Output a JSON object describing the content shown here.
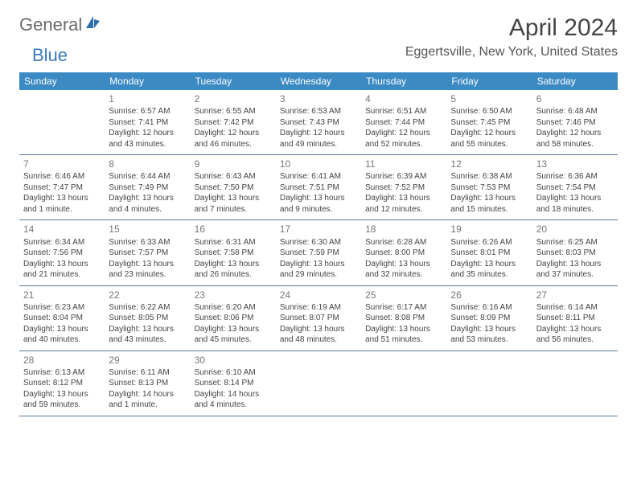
{
  "brand": {
    "part1": "General",
    "part2": "Blue"
  },
  "title": "April 2024",
  "location": "Eggertsville, New York, United States",
  "colors": {
    "header_bg": "#3b8ac4",
    "header_text": "#ffffff",
    "row_border": "#5b7a99",
    "daynum": "#777777",
    "body_text": "#444444",
    "logo_gray": "#6b6b6b",
    "logo_blue": "#3b7bbf"
  },
  "day_headers": [
    "Sunday",
    "Monday",
    "Tuesday",
    "Wednesday",
    "Thursday",
    "Friday",
    "Saturday"
  ],
  "weeks": [
    [
      {
        "n": "",
        "sr": "",
        "ss": "",
        "dl": ""
      },
      {
        "n": "1",
        "sr": "Sunrise: 6:57 AM",
        "ss": "Sunset: 7:41 PM",
        "dl": "Daylight: 12 hours and 43 minutes."
      },
      {
        "n": "2",
        "sr": "Sunrise: 6:55 AM",
        "ss": "Sunset: 7:42 PM",
        "dl": "Daylight: 12 hours and 46 minutes."
      },
      {
        "n": "3",
        "sr": "Sunrise: 6:53 AM",
        "ss": "Sunset: 7:43 PM",
        "dl": "Daylight: 12 hours and 49 minutes."
      },
      {
        "n": "4",
        "sr": "Sunrise: 6:51 AM",
        "ss": "Sunset: 7:44 PM",
        "dl": "Daylight: 12 hours and 52 minutes."
      },
      {
        "n": "5",
        "sr": "Sunrise: 6:50 AM",
        "ss": "Sunset: 7:45 PM",
        "dl": "Daylight: 12 hours and 55 minutes."
      },
      {
        "n": "6",
        "sr": "Sunrise: 6:48 AM",
        "ss": "Sunset: 7:46 PM",
        "dl": "Daylight: 12 hours and 58 minutes."
      }
    ],
    [
      {
        "n": "7",
        "sr": "Sunrise: 6:46 AM",
        "ss": "Sunset: 7:47 PM",
        "dl": "Daylight: 13 hours and 1 minute."
      },
      {
        "n": "8",
        "sr": "Sunrise: 6:44 AM",
        "ss": "Sunset: 7:49 PM",
        "dl": "Daylight: 13 hours and 4 minutes."
      },
      {
        "n": "9",
        "sr": "Sunrise: 6:43 AM",
        "ss": "Sunset: 7:50 PM",
        "dl": "Daylight: 13 hours and 7 minutes."
      },
      {
        "n": "10",
        "sr": "Sunrise: 6:41 AM",
        "ss": "Sunset: 7:51 PM",
        "dl": "Daylight: 13 hours and 9 minutes."
      },
      {
        "n": "11",
        "sr": "Sunrise: 6:39 AM",
        "ss": "Sunset: 7:52 PM",
        "dl": "Daylight: 13 hours and 12 minutes."
      },
      {
        "n": "12",
        "sr": "Sunrise: 6:38 AM",
        "ss": "Sunset: 7:53 PM",
        "dl": "Daylight: 13 hours and 15 minutes."
      },
      {
        "n": "13",
        "sr": "Sunrise: 6:36 AM",
        "ss": "Sunset: 7:54 PM",
        "dl": "Daylight: 13 hours and 18 minutes."
      }
    ],
    [
      {
        "n": "14",
        "sr": "Sunrise: 6:34 AM",
        "ss": "Sunset: 7:56 PM",
        "dl": "Daylight: 13 hours and 21 minutes."
      },
      {
        "n": "15",
        "sr": "Sunrise: 6:33 AM",
        "ss": "Sunset: 7:57 PM",
        "dl": "Daylight: 13 hours and 23 minutes."
      },
      {
        "n": "16",
        "sr": "Sunrise: 6:31 AM",
        "ss": "Sunset: 7:58 PM",
        "dl": "Daylight: 13 hours and 26 minutes."
      },
      {
        "n": "17",
        "sr": "Sunrise: 6:30 AM",
        "ss": "Sunset: 7:59 PM",
        "dl": "Daylight: 13 hours and 29 minutes."
      },
      {
        "n": "18",
        "sr": "Sunrise: 6:28 AM",
        "ss": "Sunset: 8:00 PM",
        "dl": "Daylight: 13 hours and 32 minutes."
      },
      {
        "n": "19",
        "sr": "Sunrise: 6:26 AM",
        "ss": "Sunset: 8:01 PM",
        "dl": "Daylight: 13 hours and 35 minutes."
      },
      {
        "n": "20",
        "sr": "Sunrise: 6:25 AM",
        "ss": "Sunset: 8:03 PM",
        "dl": "Daylight: 13 hours and 37 minutes."
      }
    ],
    [
      {
        "n": "21",
        "sr": "Sunrise: 6:23 AM",
        "ss": "Sunset: 8:04 PM",
        "dl": "Daylight: 13 hours and 40 minutes."
      },
      {
        "n": "22",
        "sr": "Sunrise: 6:22 AM",
        "ss": "Sunset: 8:05 PM",
        "dl": "Daylight: 13 hours and 43 minutes."
      },
      {
        "n": "23",
        "sr": "Sunrise: 6:20 AM",
        "ss": "Sunset: 8:06 PM",
        "dl": "Daylight: 13 hours and 45 minutes."
      },
      {
        "n": "24",
        "sr": "Sunrise: 6:19 AM",
        "ss": "Sunset: 8:07 PM",
        "dl": "Daylight: 13 hours and 48 minutes."
      },
      {
        "n": "25",
        "sr": "Sunrise: 6:17 AM",
        "ss": "Sunset: 8:08 PM",
        "dl": "Daylight: 13 hours and 51 minutes."
      },
      {
        "n": "26",
        "sr": "Sunrise: 6:16 AM",
        "ss": "Sunset: 8:09 PM",
        "dl": "Daylight: 13 hours and 53 minutes."
      },
      {
        "n": "27",
        "sr": "Sunrise: 6:14 AM",
        "ss": "Sunset: 8:11 PM",
        "dl": "Daylight: 13 hours and 56 minutes."
      }
    ],
    [
      {
        "n": "28",
        "sr": "Sunrise: 6:13 AM",
        "ss": "Sunset: 8:12 PM",
        "dl": "Daylight: 13 hours and 59 minutes."
      },
      {
        "n": "29",
        "sr": "Sunrise: 6:11 AM",
        "ss": "Sunset: 8:13 PM",
        "dl": "Daylight: 14 hours and 1 minute."
      },
      {
        "n": "30",
        "sr": "Sunrise: 6:10 AM",
        "ss": "Sunset: 8:14 PM",
        "dl": "Daylight: 14 hours and 4 minutes."
      },
      {
        "n": "",
        "sr": "",
        "ss": "",
        "dl": ""
      },
      {
        "n": "",
        "sr": "",
        "ss": "",
        "dl": ""
      },
      {
        "n": "",
        "sr": "",
        "ss": "",
        "dl": ""
      },
      {
        "n": "",
        "sr": "",
        "ss": "",
        "dl": ""
      }
    ]
  ]
}
